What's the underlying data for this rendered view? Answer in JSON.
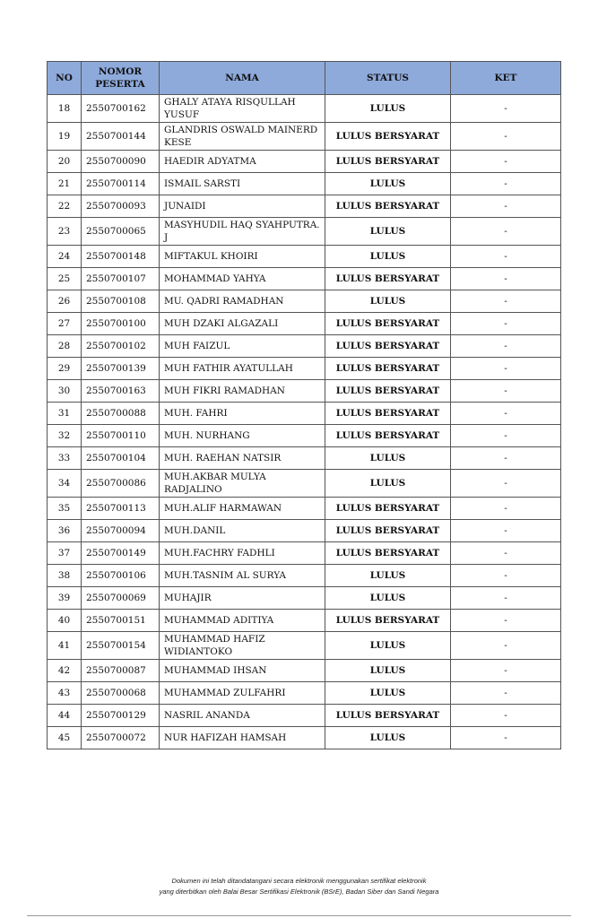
{
  "table": {
    "headers": [
      "NO",
      "NOMOR PESERTA",
      "NAMA",
      "STATUS",
      "KET"
    ],
    "rows": [
      [
        "18",
        "2550700162",
        "GHALY ATAYA RISQULLAH YUSUF",
        "LULUS",
        "-"
      ],
      [
        "19",
        "2550700144",
        "GLANDRIS OSWALD MAINERD KESE",
        "LULUS BERSYARAT",
        "-"
      ],
      [
        "20",
        "2550700090",
        "HAEDIR ADYATMA",
        "LULUS BERSYARAT",
        "-"
      ],
      [
        "21",
        "2550700114",
        "ISMAIL SARSTI",
        "LULUS",
        "-"
      ],
      [
        "22",
        "2550700093",
        "JUNAIDI",
        "LULUS BERSYARAT",
        "-"
      ],
      [
        "23",
        "2550700065",
        "MASYHUDIL HAQ SYAHPUTRA. J",
        "LULUS",
        "-"
      ],
      [
        "24",
        "2550700148",
        "MIFTAKUL KHOIRI",
        "LULUS",
        "-"
      ],
      [
        "25",
        "2550700107",
        "MOHAMMAD YAHYA",
        "LULUS BERSYARAT",
        "-"
      ],
      [
        "26",
        "2550700108",
        "MU. QADRI RAMADHAN",
        "LULUS",
        "-"
      ],
      [
        "27",
        "2550700100",
        "MUH DZAKI ALGAZALI",
        "LULUS BERSYARAT",
        "-"
      ],
      [
        "28",
        "2550700102",
        "MUH FAIZUL",
        "LULUS BERSYARAT",
        "-"
      ],
      [
        "29",
        "2550700139",
        "MUH FATHIR AYATULLAH",
        "LULUS BERSYARAT",
        "-"
      ],
      [
        "30",
        "2550700163",
        "MUH FIKRI RAMADHAN",
        "LULUS BERSYARAT",
        "-"
      ],
      [
        "31",
        "2550700088",
        "MUH. FAHRI",
        "LULUS BERSYARAT",
        "-"
      ],
      [
        "32",
        "2550700110",
        "MUH. NURHANG",
        "LULUS BERSYARAT",
        "-"
      ],
      [
        "33",
        "2550700104",
        "MUH. RAEHAN NATSIR",
        "LULUS",
        "-"
      ],
      [
        "34",
        "2550700086",
        "MUH.AKBAR MULYA RADJALINO",
        "LULUS",
        "-"
      ],
      [
        "35",
        "2550700113",
        "MUH.ALIF HARMAWAN",
        "LULUS BERSYARAT",
        "-"
      ],
      [
        "36",
        "2550700094",
        "MUH.DANIL",
        "LULUS BERSYARAT",
        "-"
      ],
      [
        "37",
        "2550700149",
        "MUH.FACHRY FADHLI",
        "LULUS BERSYARAT",
        "-"
      ],
      [
        "38",
        "2550700106",
        "MUH.TASNIM AL SURYA",
        "LULUS",
        "-"
      ],
      [
        "39",
        "2550700069",
        "MUHAJIR",
        "LULUS",
        "-"
      ],
      [
        "40",
        "2550700151",
        "MUHAMMAD ADITIYA",
        "LULUS BERSYARAT",
        "-"
      ],
      [
        "41",
        "2550700154",
        "MUHAMMAD HAFIZ WIDIANTOKO",
        "LULUS",
        "-"
      ],
      [
        "42",
        "2550700087",
        "MUHAMMAD IHSAN",
        "LULUS",
        "-"
      ],
      [
        "43",
        "2550700068",
        "MUHAMMAD ZULFAHRI",
        "LULUS",
        "-"
      ],
      [
        "44",
        "2550700129",
        "NASRIL ANANDA",
        "LULUS BERSYARAT",
        "-"
      ],
      [
        "45",
        "2550700072",
        "NUR HAFIZAH HAMSAH",
        "LULUS",
        "-"
      ]
    ]
  },
  "footer": {
    "line1": "Dokumen ini telah ditandatangani secara elektronik menggunakan sertifikat elektronik",
    "line2": "yang diterbitkan oleh Balai Besar Sertifikasi Elektronik (BSrE), Badan Siber dan Sandi Negara"
  }
}
